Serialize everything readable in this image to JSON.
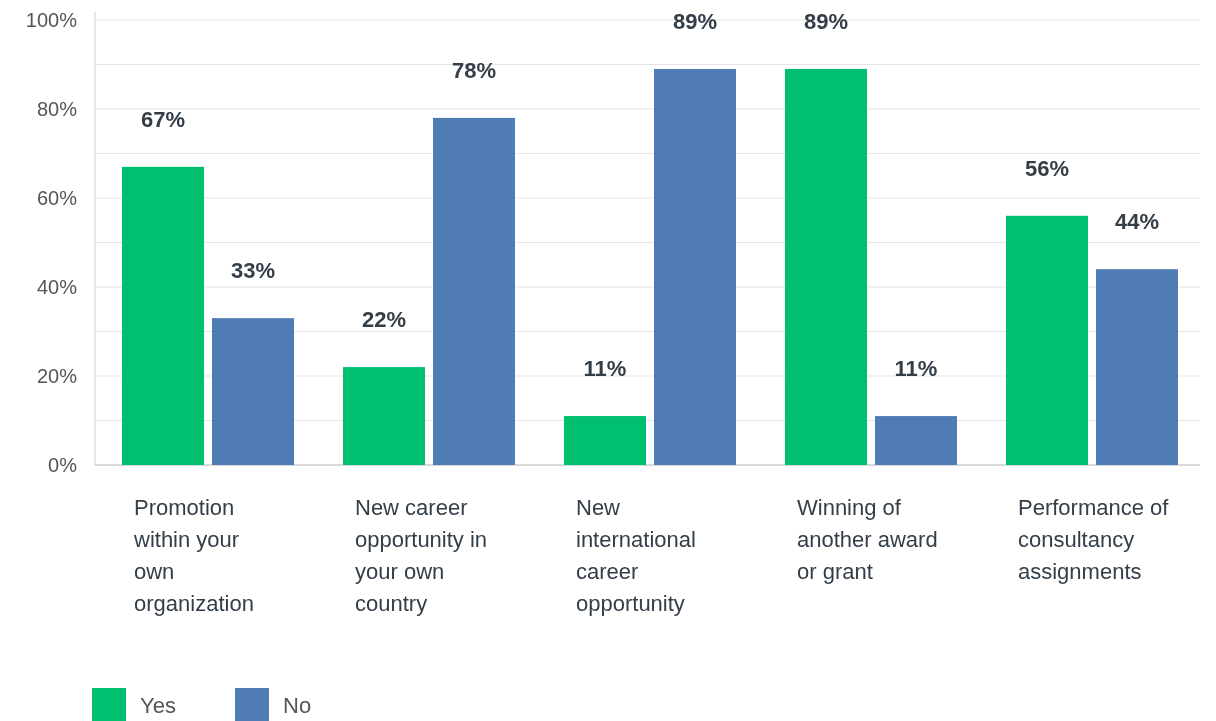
{
  "chart_data": {
    "type": "bar",
    "categories": [
      "Promotion within your own organization",
      "New career opportunity in your own country",
      "New international career opportunity",
      "Winning of another award or grant",
      "Performance of consultancy assignments"
    ],
    "series": [
      {
        "name": "Yes",
        "color": "#00bf6f",
        "values": [
          67,
          22,
          11,
          89,
          56
        ],
        "value_labels": [
          "67%",
          "22%",
          "11%",
          "89%",
          "56%"
        ]
      },
      {
        "name": "No",
        "color": "#507cb6",
        "values": [
          33,
          78,
          89,
          11,
          44
        ],
        "value_labels": [
          "33%",
          "78%",
          "89%",
          "11%",
          "44%"
        ]
      }
    ],
    "ylim": [
      0,
      100
    ],
    "yticks": [
      {
        "value": 0,
        "label": "0%"
      },
      {
        "value": 10,
        "label": null
      },
      {
        "value": 20,
        "label": "20%"
      },
      {
        "value": 30,
        "label": null
      },
      {
        "value": 40,
        "label": "40%"
      },
      {
        "value": 50,
        "label": null
      },
      {
        "value": 60,
        "label": "60%"
      },
      {
        "value": 70,
        "label": null
      },
      {
        "value": 80,
        "label": "80%"
      },
      {
        "value": 90,
        "label": null
      },
      {
        "value": 100,
        "label": "100%"
      }
    ],
    "grid": true,
    "legend": "bottom left"
  }
}
